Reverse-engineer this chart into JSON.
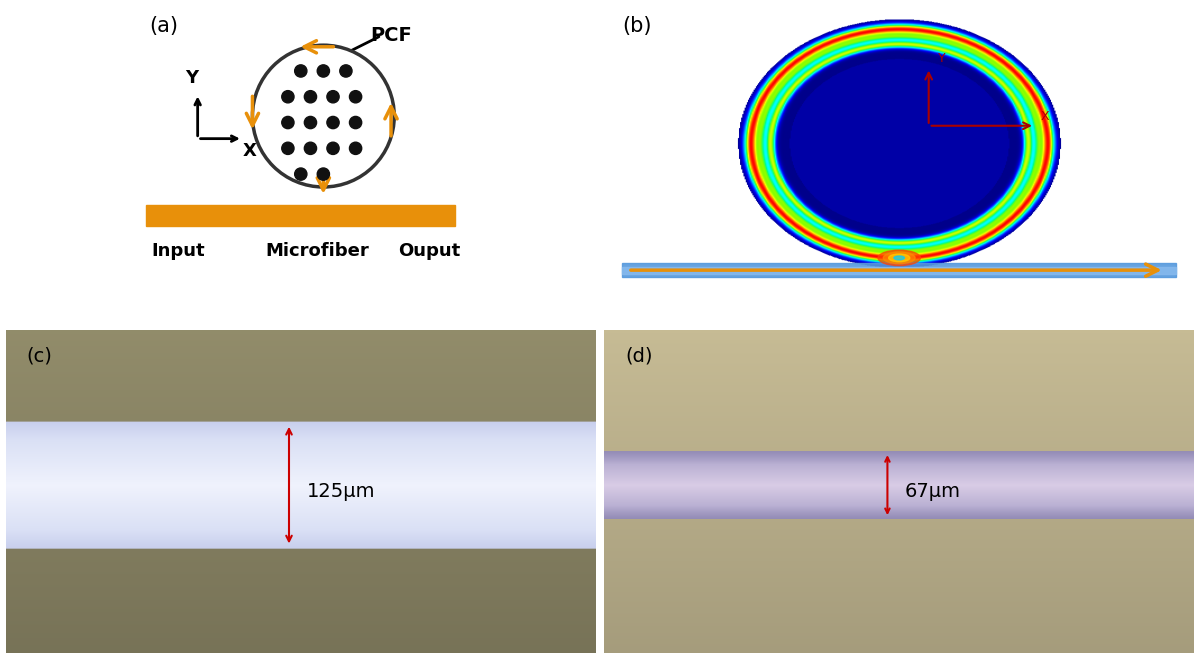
{
  "panel_a_label": "(a)",
  "panel_b_label": "(b)",
  "panel_c_label": "(c)",
  "panel_d_label": "(d)",
  "pcf_label": "PCF",
  "input_label": "Input",
  "microfiber_label": "Microfiber",
  "output_label": "Ouput",
  "measurement_c": "125μm",
  "measurement_d": "67μm",
  "arrow_color": "#E8900A",
  "dot_color": "#111111",
  "circle_color": "#333333",
  "red_coord_color": "#aa0000",
  "fiber_bar_color": "#E8900A",
  "panel_c_bg_top": "#858060",
  "panel_c_bg_bot": "#6a6448",
  "panel_d_bg": "#b5aa8a"
}
